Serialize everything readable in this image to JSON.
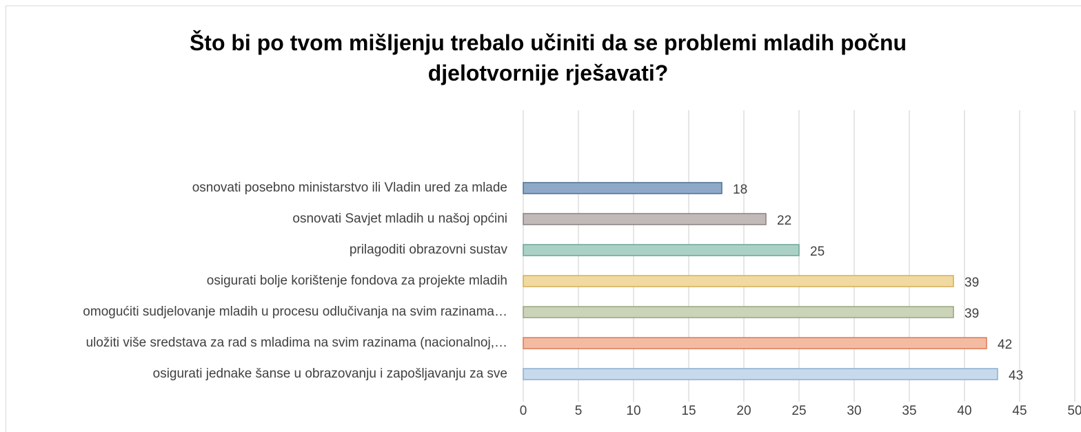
{
  "chart_data": {
    "type": "barh",
    "title": "Što bi po tvom mišljenju trebalo učiniti da se problemi mladih počnu djelotvornije rješavati?",
    "categories": [
      "osnovati posebno ministarstvo ili Vladin ured za mlade",
      "osnovati Savjet mladih u našoj općini",
      "prilagoditi obrazovni sustav",
      "osigurati bolje korištenje fondova za projekte mladih",
      "omogućiti sudjelovanje mladih u procesu odlučivanja na svim razinama…",
      "uložiti više sredstava za rad s mladima na svim razinama (nacionalnoj,…",
      "osigurati jednake šanse u obrazovanju i zapošljavanju za sve"
    ],
    "values": [
      18,
      22,
      25,
      39,
      39,
      42,
      43
    ],
    "colors": [
      "#8ea9c8",
      "#c2b9b9",
      "#abd1c6",
      "#f1d9a2",
      "#cbd3b9",
      "#f4bba3",
      "#c7daec"
    ],
    "edge_colors": [
      "#4f6f94",
      "#8a8080",
      "#6aa595",
      "#d4b04f",
      "#98a57a",
      "#e07850",
      "#8aaed0"
    ],
    "xlim": [
      0,
      50
    ],
    "xticks": [
      0,
      5,
      10,
      15,
      20,
      25,
      30,
      35,
      40,
      45,
      50
    ],
    "grid": true
  }
}
